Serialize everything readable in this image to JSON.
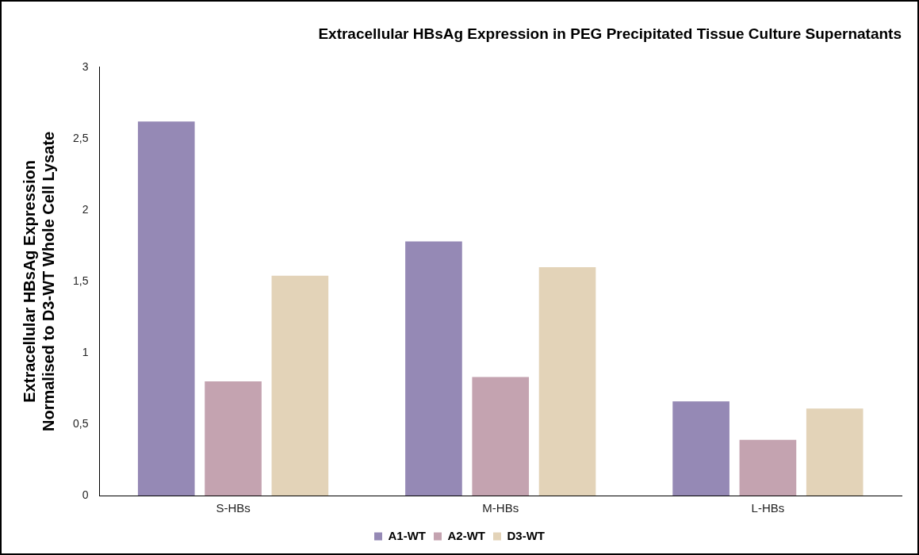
{
  "chart_data": {
    "type": "bar",
    "title": "Extracellular HBsAg Expression in PEG Precipitated Tissue Culture Supernatants",
    "ylabel": "Extracellular HBsAg Expression\nNormalised to D3-WT Whole Cell Lysate",
    "categories": [
      "S-HBs",
      "M-HBs",
      "L-HBs"
    ],
    "series": [
      {
        "name": "A1-WT",
        "color": "#9589b5",
        "values": [
          2.62,
          1.78,
          0.66
        ]
      },
      {
        "name": "A2-WT",
        "color": "#c4a3b0",
        "values": [
          0.8,
          0.83,
          0.39
        ]
      },
      {
        "name": "D3-WT",
        "color": "#e3d3b8",
        "values": [
          1.54,
          1.6,
          0.61
        ]
      }
    ],
    "ylim": [
      0,
      3
    ],
    "yticks": [
      0,
      {
        "value": 0.5,
        "label": "0,5"
      },
      1,
      {
        "value": 1.5,
        "label": "1,5"
      },
      2,
      {
        "value": 2.5,
        "label": "2,5"
      },
      3
    ],
    "grid": false,
    "legend": "bottom"
  }
}
